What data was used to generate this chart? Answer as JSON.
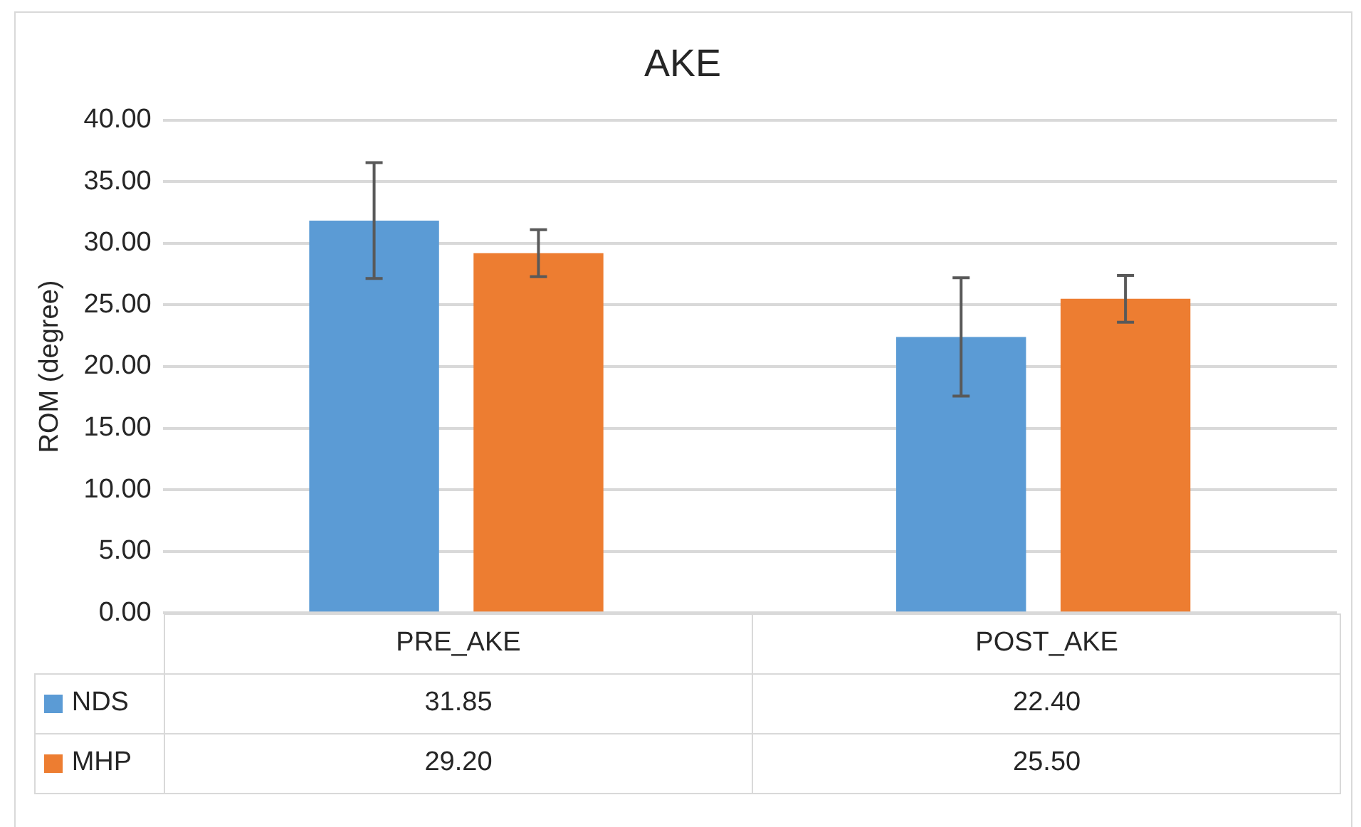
{
  "chart_data": {
    "type": "bar",
    "title": "AKE",
    "ylabel": "ROM (degree)",
    "categories": [
      "PRE_AKE",
      "POST_AKE"
    ],
    "series": [
      {
        "name": "NDS",
        "color": "#5b9bd5",
        "values": [
          31.85,
          22.4
        ],
        "value_labels": [
          "31.85",
          "22.40"
        ],
        "errors": [
          4.7,
          4.8
        ]
      },
      {
        "name": "MHP",
        "color": "#ed7d31",
        "values": [
          29.2,
          25.5
        ],
        "value_labels": [
          "29.20",
          "25.50"
        ],
        "errors": [
          1.9,
          1.9
        ]
      }
    ],
    "ylim": [
      0,
      40
    ],
    "yticks": [
      {
        "value": 0,
        "label": "0.00"
      },
      {
        "value": 5,
        "label": "5.00"
      },
      {
        "value": 10,
        "label": "10.00"
      },
      {
        "value": 15,
        "label": "15.00"
      },
      {
        "value": 20,
        "label": "20.00"
      },
      {
        "value": 25,
        "label": "25.00"
      },
      {
        "value": 30,
        "label": "30.00"
      },
      {
        "value": 35,
        "label": "35.00"
      },
      {
        "value": 40,
        "label": "40.00"
      }
    ],
    "grid": "y",
    "legend": "bottom"
  }
}
